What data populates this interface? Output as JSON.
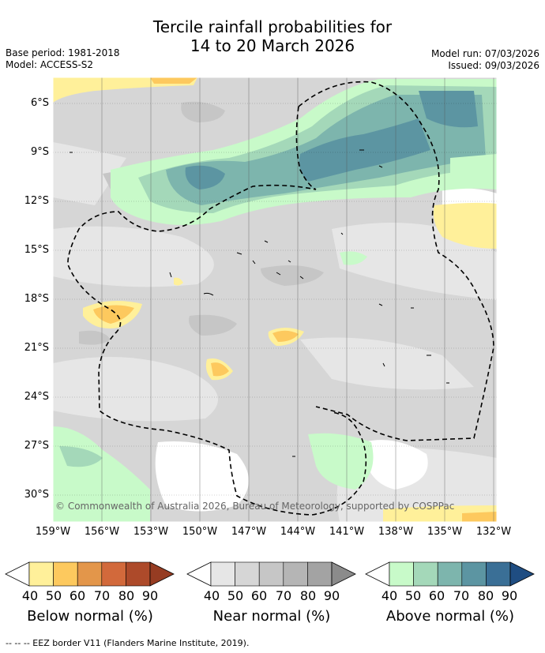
{
  "title": {
    "line1": "Tercile rainfall probabilities for",
    "line2": "14 to 20 March 2026"
  },
  "meta": {
    "base_period": "Base period: 1981-2018",
    "model": "Model: ACCESS-S2",
    "model_run": "Model run: 07/03/2026",
    "issued": "Issued: 09/03/2026"
  },
  "axes": {
    "lat_labels": [
      "6°S",
      "9°S",
      "12°S",
      "15°S",
      "18°S",
      "21°S",
      "24°S",
      "27°S",
      "30°S"
    ],
    "lon_labels": [
      "159°W",
      "156°W",
      "153°W",
      "150°W",
      "147°W",
      "144°W",
      "141°W",
      "138°W",
      "135°W",
      "132°W"
    ]
  },
  "copyright": "© Commonwealth of Australia 2026, Bureau of Meteorology, supported by COSPPac",
  "legends": [
    {
      "caption": "Below normal (%)",
      "ticks": [
        "40",
        "50",
        "60",
        "70",
        "80",
        "90"
      ],
      "colors": [
        "#ffffff",
        "#fff09a",
        "#fdc95e",
        "#e3964a",
        "#d2693b",
        "#ad4a2a",
        "#963c22"
      ]
    },
    {
      "caption": "Near normal (%)",
      "ticks": [
        "40",
        "50",
        "60",
        "70",
        "80",
        "90"
      ],
      "colors": [
        "#ffffff",
        "#e6e6e6",
        "#d6d6d6",
        "#c6c6c6",
        "#b5b5b5",
        "#a3a3a3",
        "#8b8b8b"
      ]
    },
    {
      "caption": "Above normal (%)",
      "ticks": [
        "40",
        "50",
        "60",
        "70",
        "80",
        "90"
      ],
      "colors": [
        "#ffffff",
        "#c8fac9",
        "#a4d8b9",
        "#7db5ad",
        "#5c95a2",
        "#3a6f96",
        "#1f4d82"
      ]
    }
  ],
  "footer": "--  --  -- EEZ border V11 (Flanders Marine Institute, 2019)."
}
